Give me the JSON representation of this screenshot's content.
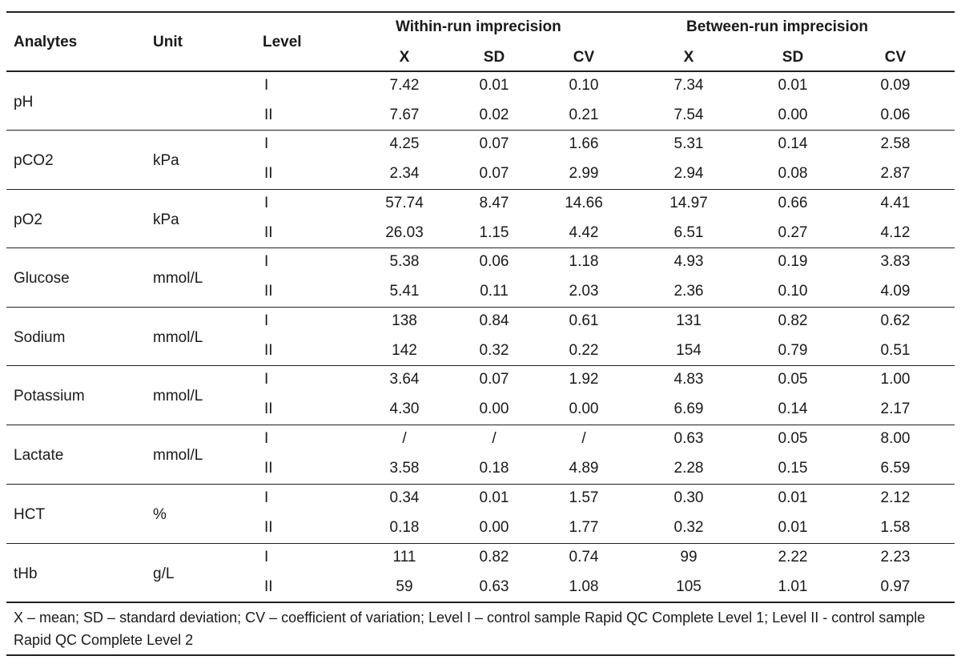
{
  "headers": {
    "analytes": "Analytes",
    "unit": "Unit",
    "level": "Level",
    "within_group": "Within-run imprecision",
    "between_group": "Between-run imprecision",
    "within_cols": [
      "X",
      "SD",
      "CV"
    ],
    "between_cols": [
      "X",
      "SD",
      "CV"
    ]
  },
  "rows": [
    {
      "analyte": "pH",
      "unit": "",
      "levels": [
        {
          "level": "I",
          "within": [
            "7.42",
            "0.01",
            "0.10"
          ],
          "between": [
            "7.34",
            "0.01",
            "0.09"
          ]
        },
        {
          "level": "II",
          "within": [
            "7.67",
            "0.02",
            "0.21"
          ],
          "between": [
            "7.54",
            "0.00",
            "0.06"
          ]
        }
      ]
    },
    {
      "analyte": "pCO2",
      "unit": "kPa",
      "levels": [
        {
          "level": "I",
          "within": [
            "4.25",
            "0.07",
            "1.66"
          ],
          "between": [
            "5.31",
            "0.14",
            "2.58"
          ]
        },
        {
          "level": "II",
          "within": [
            "2.34",
            "0.07",
            "2.99"
          ],
          "between": [
            "2.94",
            "0.08",
            "2.87"
          ]
        }
      ]
    },
    {
      "analyte": "pO2",
      "unit": "kPa",
      "levels": [
        {
          "level": "I",
          "within": [
            "57.74",
            "8.47",
            "14.66"
          ],
          "between": [
            "14.97",
            "0.66",
            "4.41"
          ]
        },
        {
          "level": "II",
          "within": [
            "26.03",
            "1.15",
            "4.42"
          ],
          "between": [
            "6.51",
            "0.27",
            "4.12"
          ]
        }
      ]
    },
    {
      "analyte": "Glucose",
      "unit": "mmol/L",
      "levels": [
        {
          "level": "I",
          "within": [
            "5.38",
            "0.06",
            "1.18"
          ],
          "between": [
            "4.93",
            "0.19",
            "3.83"
          ]
        },
        {
          "level": "II",
          "within": [
            "5.41",
            "0.11",
            "2.03"
          ],
          "between": [
            "2.36",
            "0.10",
            "4.09"
          ]
        }
      ]
    },
    {
      "analyte": "Sodium",
      "unit": "mmol/L",
      "levels": [
        {
          "level": "I",
          "within": [
            "138",
            "0.84",
            "0.61"
          ],
          "between": [
            "131",
            "0.82",
            "0.62"
          ]
        },
        {
          "level": "II",
          "within": [
            "142",
            "0.32",
            "0.22"
          ],
          "between": [
            "154",
            "0.79",
            "0.51"
          ]
        }
      ]
    },
    {
      "analyte": "Potassium",
      "unit": "mmol/L",
      "levels": [
        {
          "level": "I",
          "within": [
            "3.64",
            "0.07",
            "1.92"
          ],
          "between": [
            "4.83",
            "0.05",
            "1.00"
          ]
        },
        {
          "level": "II",
          "within": [
            "4.30",
            "0.00",
            "0.00"
          ],
          "between": [
            "6.69",
            "0.14",
            "2.17"
          ]
        }
      ]
    },
    {
      "analyte": "Lactate",
      "unit": "mmol/L",
      "levels": [
        {
          "level": "I",
          "within": [
            "/",
            "/",
            "/"
          ],
          "between": [
            "0.63",
            "0.05",
            "8.00"
          ]
        },
        {
          "level": "II",
          "within": [
            "3.58",
            "0.18",
            "4.89"
          ],
          "between": [
            "2.28",
            "0.15",
            "6.59"
          ]
        }
      ]
    },
    {
      "analyte": "HCT",
      "unit": "%",
      "levels": [
        {
          "level": "I",
          "within": [
            "0.34",
            "0.01",
            "1.57"
          ],
          "between": [
            "0.30",
            "0.01",
            "2.12"
          ]
        },
        {
          "level": "II",
          "within": [
            "0.18",
            "0.00",
            "1.77"
          ],
          "between": [
            "0.32",
            "0.01",
            "1.58"
          ]
        }
      ]
    },
    {
      "analyte": "tHb",
      "unit": "g/L",
      "levels": [
        {
          "level": "I",
          "within": [
            "111",
            "0.82",
            "0.74"
          ],
          "between": [
            "99",
            "2.22",
            "2.23"
          ]
        },
        {
          "level": "II",
          "within": [
            "59",
            "0.63",
            "1.08"
          ],
          "between": [
            "105",
            "1.01",
            "0.97"
          ]
        }
      ]
    }
  ],
  "footnote": "X – mean; SD – standard deviation; CV – coefficient of variation; Level I – control sample Rapid QC Complete Level 1; Level II - control sample Rapid QC Complete Level 2"
}
